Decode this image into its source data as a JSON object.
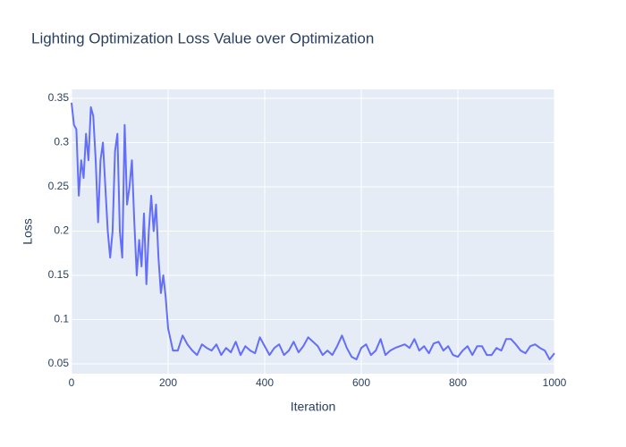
{
  "chart_data": {
    "type": "line",
    "title": "Lighting Optimization Loss Value over Optimization",
    "x_label": "Iteration",
    "y_label": "Loss",
    "x": [
      0,
      5,
      10,
      15,
      20,
      25,
      30,
      35,
      40,
      45,
      50,
      55,
      60,
      65,
      70,
      75,
      80,
      85,
      90,
      95,
      100,
      105,
      110,
      115,
      120,
      125,
      130,
      135,
      140,
      145,
      150,
      155,
      160,
      165,
      170,
      175,
      180,
      185,
      190,
      195,
      200,
      210,
      220,
      230,
      240,
      250,
      260,
      270,
      280,
      290,
      300,
      310,
      320,
      330,
      340,
      350,
      360,
      370,
      380,
      390,
      400,
      410,
      420,
      430,
      440,
      450,
      460,
      470,
      480,
      490,
      500,
      510,
      520,
      530,
      540,
      550,
      560,
      570,
      580,
      590,
      600,
      610,
      620,
      630,
      640,
      650,
      660,
      670,
      680,
      690,
      700,
      710,
      720,
      730,
      740,
      750,
      760,
      770,
      780,
      790,
      800,
      810,
      820,
      830,
      840,
      850,
      860,
      870,
      880,
      890,
      900,
      910,
      920,
      930,
      940,
      950,
      960,
      970,
      980,
      990,
      1000
    ],
    "values": [
      0.345,
      0.32,
      0.315,
      0.24,
      0.28,
      0.26,
      0.31,
      0.28,
      0.34,
      0.33,
      0.28,
      0.21,
      0.28,
      0.3,
      0.25,
      0.2,
      0.17,
      0.2,
      0.29,
      0.31,
      0.2,
      0.17,
      0.32,
      0.23,
      0.25,
      0.28,
      0.21,
      0.15,
      0.19,
      0.16,
      0.22,
      0.14,
      0.2,
      0.24,
      0.2,
      0.23,
      0.17,
      0.13,
      0.15,
      0.125,
      0.09,
      0.065,
      0.065,
      0.082,
      0.072,
      0.065,
      0.06,
      0.072,
      0.068,
      0.065,
      0.072,
      0.06,
      0.068,
      0.063,
      0.075,
      0.06,
      0.07,
      0.065,
      0.062,
      0.08,
      0.07,
      0.06,
      0.068,
      0.072,
      0.06,
      0.065,
      0.075,
      0.063,
      0.07,
      0.08,
      0.075,
      0.07,
      0.06,
      0.065,
      0.06,
      0.07,
      0.082,
      0.068,
      0.058,
      0.055,
      0.068,
      0.072,
      0.06,
      0.065,
      0.078,
      0.06,
      0.065,
      0.068,
      0.07,
      0.072,
      0.068,
      0.078,
      0.065,
      0.07,
      0.062,
      0.073,
      0.075,
      0.065,
      0.07,
      0.06,
      0.058,
      0.065,
      0.07,
      0.06,
      0.07,
      0.07,
      0.06,
      0.06,
      0.068,
      0.065,
      0.078,
      0.078,
      0.072,
      0.065,
      0.062,
      0.07,
      0.072,
      0.068,
      0.065,
      0.055,
      0.062
    ],
    "color": "#636efa",
    "xlim": [
      0,
      1000
    ],
    "xticks": [
      0,
      200,
      400,
      600,
      800,
      1000
    ],
    "ylim": [
      0.0389,
      0.3601
    ],
    "yticks": [
      0.05,
      0.1,
      0.15,
      0.2,
      0.25,
      0.3,
      0.35
    ],
    "grid": true
  }
}
